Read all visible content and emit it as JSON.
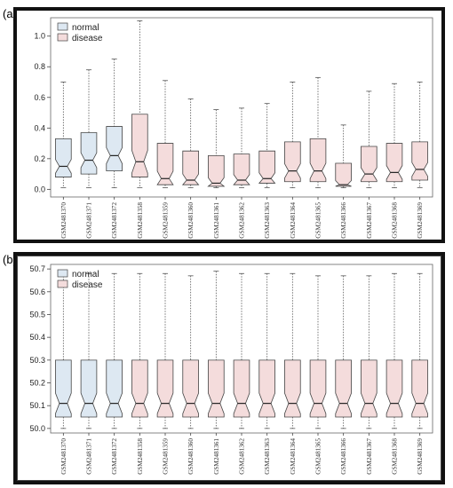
{
  "panels": [
    {
      "letter": "(a)"
    },
    {
      "letter": "(b)"
    }
  ],
  "colors": {
    "normal_fill": "#dde8f2",
    "disease_fill": "#f4dcdc",
    "box_stroke": "#444444",
    "whisker": "#555555"
  },
  "chart_data": [
    {
      "type": "boxplot",
      "panel": "(a)",
      "legend": {
        "position": "top-left",
        "entries": [
          {
            "name": "normal",
            "group": "normal"
          },
          {
            "name": "disease",
            "group": "disease"
          }
        ]
      },
      "ylim": [
        -0.05,
        1.12
      ],
      "yticks": [
        0.0,
        0.2,
        0.4,
        0.6,
        0.8,
        1.0
      ],
      "ytick_labels": [
        "0.0",
        "0.2",
        "0.4",
        "0.6",
        "0.8",
        "1.0"
      ],
      "categories": [
        "GSM2481370",
        "GSM2481371",
        "GSM2481372",
        "GSM2481358",
        "GSM2481359",
        "GSM2481360",
        "GSM2481361",
        "GSM2481362",
        "GSM2481363",
        "GSM2481364",
        "GSM2481365",
        "GSM2481366",
        "GSM2481367",
        "GSM2481368",
        "GSM2481369"
      ],
      "groups": [
        "normal",
        "normal",
        "normal",
        "disease",
        "disease",
        "disease",
        "disease",
        "disease",
        "disease",
        "disease",
        "disease",
        "disease",
        "disease",
        "disease",
        "disease"
      ],
      "boxes": [
        {
          "min": 0.01,
          "q1": 0.08,
          "median": 0.15,
          "q3": 0.33,
          "max": 0.7
        },
        {
          "min": 0.01,
          "q1": 0.1,
          "median": 0.19,
          "q3": 0.37,
          "max": 0.78
        },
        {
          "min": 0.01,
          "q1": 0.12,
          "median": 0.22,
          "q3": 0.41,
          "max": 0.85
        },
        {
          "min": 0.01,
          "q1": 0.08,
          "median": 0.18,
          "q3": 0.49,
          "max": 1.1
        },
        {
          "min": 0.01,
          "q1": 0.03,
          "median": 0.07,
          "q3": 0.3,
          "max": 0.71
        },
        {
          "min": 0.01,
          "q1": 0.03,
          "median": 0.06,
          "q3": 0.25,
          "max": 0.59
        },
        {
          "min": 0.01,
          "q1": 0.02,
          "median": 0.04,
          "q3": 0.22,
          "max": 0.52
        },
        {
          "min": 0.01,
          "q1": 0.03,
          "median": 0.06,
          "q3": 0.23,
          "max": 0.53
        },
        {
          "min": 0.01,
          "q1": 0.04,
          "median": 0.07,
          "q3": 0.25,
          "max": 0.56
        },
        {
          "min": 0.01,
          "q1": 0.05,
          "median": 0.12,
          "q3": 0.31,
          "max": 0.7
        },
        {
          "min": 0.01,
          "q1": 0.05,
          "median": 0.12,
          "q3": 0.33,
          "max": 0.73
        },
        {
          "min": 0.01,
          "q1": 0.02,
          "median": 0.03,
          "q3": 0.17,
          "max": 0.42
        },
        {
          "min": 0.01,
          "q1": 0.05,
          "median": 0.1,
          "q3": 0.28,
          "max": 0.64
        },
        {
          "min": 0.01,
          "q1": 0.05,
          "median": 0.11,
          "q3": 0.3,
          "max": 0.69
        },
        {
          "min": 0.01,
          "q1": 0.06,
          "median": 0.13,
          "q3": 0.31,
          "max": 0.7
        }
      ]
    },
    {
      "type": "boxplot",
      "panel": "(b)",
      "legend": {
        "position": "top-left",
        "entries": [
          {
            "name": "normal",
            "group": "normal"
          },
          {
            "name": "disease",
            "group": "disease"
          }
        ]
      },
      "ylim": [
        49.98,
        50.72
      ],
      "yticks": [
        50.0,
        50.1,
        50.2,
        50.3,
        50.4,
        50.5,
        50.6,
        50.7
      ],
      "ytick_labels": [
        "50.0",
        "50.1",
        "50.2",
        "50.3",
        "50.4",
        "50.5",
        "50.6",
        "50.7"
      ],
      "categories": [
        "GSM2481370",
        "GSM2481371",
        "GSM2481372",
        "GSM2481358",
        "GSM2481359",
        "GSM2481360",
        "GSM2481361",
        "GSM2481362",
        "GSM2481363",
        "GSM2481364",
        "GSM2481365",
        "GSM2481366",
        "GSM2481367",
        "GSM2481368",
        "GSM2481369"
      ],
      "groups": [
        "normal",
        "normal",
        "normal",
        "disease",
        "disease",
        "disease",
        "disease",
        "disease",
        "disease",
        "disease",
        "disease",
        "disease",
        "disease",
        "disease",
        "disease"
      ],
      "boxes": [
        {
          "min": 50.0,
          "q1": 50.05,
          "median": 50.11,
          "q3": 50.3,
          "max": 50.68
        },
        {
          "min": 50.0,
          "q1": 50.05,
          "median": 50.11,
          "q3": 50.3,
          "max": 50.68
        },
        {
          "min": 50.0,
          "q1": 50.05,
          "median": 50.11,
          "q3": 50.3,
          "max": 50.68
        },
        {
          "min": 50.0,
          "q1": 50.05,
          "median": 50.11,
          "q3": 50.3,
          "max": 50.68
        },
        {
          "min": 50.0,
          "q1": 50.05,
          "median": 50.11,
          "q3": 50.3,
          "max": 50.68
        },
        {
          "min": 50.0,
          "q1": 50.05,
          "median": 50.11,
          "q3": 50.3,
          "max": 50.67
        },
        {
          "min": 50.0,
          "q1": 50.05,
          "median": 50.11,
          "q3": 50.3,
          "max": 50.69
        },
        {
          "min": 50.0,
          "q1": 50.05,
          "median": 50.11,
          "q3": 50.3,
          "max": 50.68
        },
        {
          "min": 50.0,
          "q1": 50.05,
          "median": 50.11,
          "q3": 50.3,
          "max": 50.68
        },
        {
          "min": 50.0,
          "q1": 50.05,
          "median": 50.11,
          "q3": 50.3,
          "max": 50.68
        },
        {
          "min": 50.0,
          "q1": 50.05,
          "median": 50.11,
          "q3": 50.3,
          "max": 50.67
        },
        {
          "min": 50.0,
          "q1": 50.05,
          "median": 50.11,
          "q3": 50.3,
          "max": 50.67
        },
        {
          "min": 50.0,
          "q1": 50.05,
          "median": 50.11,
          "q3": 50.3,
          "max": 50.67
        },
        {
          "min": 50.0,
          "q1": 50.05,
          "median": 50.11,
          "q3": 50.3,
          "max": 50.68
        },
        {
          "min": 50.0,
          "q1": 50.05,
          "median": 50.11,
          "q3": 50.3,
          "max": 50.68
        }
      ]
    }
  ]
}
